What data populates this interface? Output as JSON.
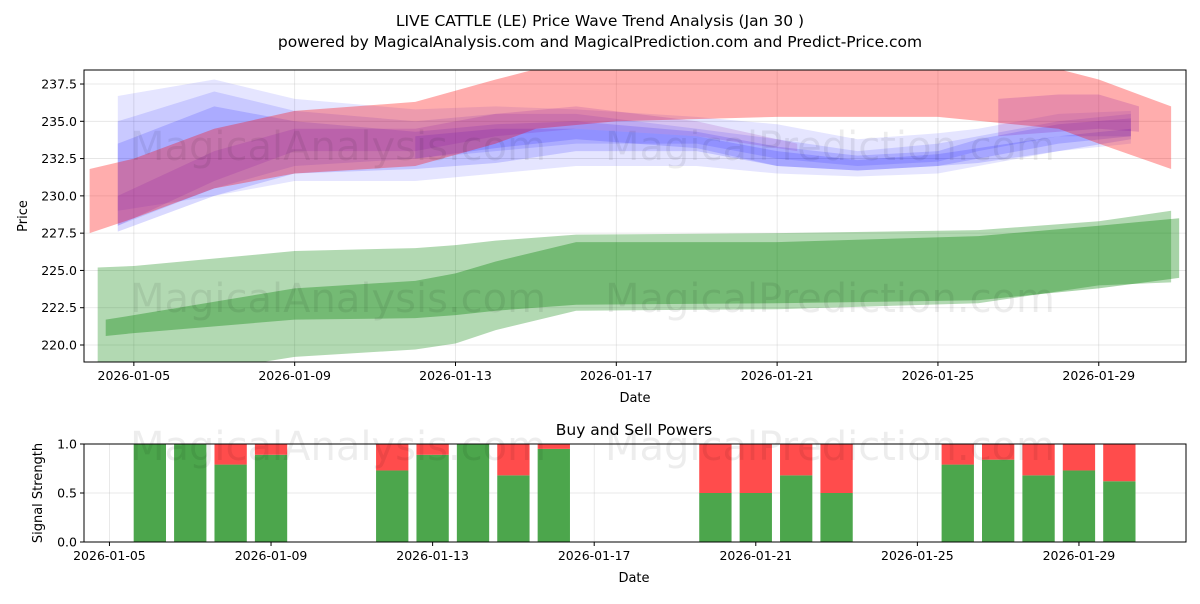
{
  "title": "LIVE CATTLE (LE) Price Wave Trend Analysis (Jan 30 )",
  "subtitle": "powered by MagicalAnalysis.com and MagicalPrediction.com and Predict-Price.com",
  "watermarks": [
    "MagicalAnalysis.com",
    "MagicalPrediction.com"
  ],
  "chart_data": [
    {
      "type": "area",
      "title": "",
      "xlabel": "Date",
      "ylabel": "Price",
      "x_unit": "day of January 2026",
      "xlim": [
        3.76,
        31.17
      ],
      "ylim": [
        218.86,
        238.44
      ],
      "xticks": [
        5,
        9,
        13,
        17,
        21,
        25,
        29
      ],
      "xtick_labels": [
        "2026-01-05",
        "2026-01-09",
        "2026-01-13",
        "2026-01-17",
        "2026-01-21",
        "2026-01-25",
        "2026-01-29"
      ],
      "yticks": [
        220.0,
        222.5,
        225.0,
        227.5,
        230.0,
        232.5,
        235.0,
        237.5
      ],
      "ytick_labels": [
        "220.0",
        "222.5",
        "225.0",
        "227.5",
        "230.0",
        "232.5",
        "235.0",
        "237.5"
      ],
      "grid": true,
      "bands": [
        {
          "name": "green-outer",
          "color": "#008000",
          "opacity": 0.3,
          "x": [
            4.1,
            5,
            9,
            12,
            13,
            14,
            16,
            21,
            26,
            29,
            30.8
          ],
          "upper": [
            225.2,
            225.3,
            226.3,
            226.5,
            226.7,
            227.0,
            227.4,
            227.5,
            227.7,
            228.3,
            229.0
          ],
          "lower": [
            218.5,
            217.5,
            219.2,
            219.7,
            220.1,
            221.0,
            222.3,
            222.4,
            222.8,
            224.0,
            224.2
          ]
        },
        {
          "name": "green-inner",
          "color": "#008000",
          "opacity": 0.35,
          "x": [
            4.3,
            5,
            9,
            12,
            13,
            14,
            16,
            21,
            26,
            29,
            31
          ],
          "upper": [
            221.7,
            222.0,
            223.8,
            224.3,
            224.8,
            225.6,
            226.9,
            226.9,
            227.3,
            228.0,
            228.5
          ],
          "lower": [
            220.6,
            220.8,
            221.7,
            221.8,
            222.0,
            222.3,
            222.7,
            222.8,
            223.0,
            223.8,
            224.5
          ]
        },
        {
          "name": "blue-1",
          "color": "#0000ff",
          "opacity": 0.1,
          "x": [
            4.6,
            7,
            9,
            12,
            14,
            16,
            19,
            21,
            23,
            25,
            26,
            28,
            29.8
          ],
          "upper": [
            236.7,
            237.8,
            236.5,
            235.8,
            236.0,
            235.8,
            235.3,
            234.8,
            233.8,
            234.2,
            234.5,
            235.5,
            235.7
          ],
          "lower": [
            229.0,
            230.0,
            231.0,
            231.0,
            231.5,
            232.0,
            232.0,
            231.5,
            231.3,
            231.5,
            232.0,
            233.0,
            233.5
          ]
        },
        {
          "name": "blue-2",
          "color": "#0000ff",
          "opacity": 0.12,
          "x": [
            4.6,
            7,
            9,
            12,
            14,
            16,
            19,
            21,
            23,
            25,
            26,
            28,
            29.8
          ],
          "upper": [
            235.0,
            237.0,
            235.7,
            235.0,
            235.5,
            235.5,
            234.5,
            233.8,
            233.0,
            233.5,
            234.0,
            235.0,
            235.5
          ],
          "lower": [
            228.0,
            230.5,
            232.0,
            232.5,
            233.0,
            233.5,
            233.5,
            232.5,
            232.0,
            232.3,
            233.0,
            234.0,
            234.0
          ]
        },
        {
          "name": "blue-3",
          "color": "#0000ff",
          "opacity": 0.15,
          "x": [
            4.6,
            7,
            9,
            12,
            14,
            16,
            19,
            21,
            23,
            25,
            26,
            28,
            29.8
          ],
          "upper": [
            233.5,
            236.0,
            235.0,
            234.3,
            234.8,
            235.0,
            234.3,
            233.3,
            232.7,
            233.0,
            233.8,
            234.8,
            235.2
          ],
          "lower": [
            227.6,
            230.0,
            231.5,
            231.8,
            232.2,
            233.0,
            233.0,
            232.0,
            231.7,
            232.0,
            232.5,
            233.5,
            234.0
          ]
        },
        {
          "name": "blue-4",
          "color": "#0000ff",
          "opacity": 0.15,
          "x": [
            12,
            14,
            16,
            19,
            21,
            23,
            25,
            26,
            28,
            29.8
          ],
          "upper": [
            234.0,
            234.5,
            234.5,
            234.0,
            233.0,
            232.4,
            232.8,
            233.2,
            234.0,
            234.5
          ],
          "lower": [
            232.5,
            233.2,
            233.8,
            233.2,
            232.0,
            231.7,
            232.0,
            232.2,
            233.0,
            233.8
          ]
        },
        {
          "name": "red-main",
          "color": "#ff0000",
          "opacity": 0.32,
          "x": [
            3.9,
            5,
            7,
            9,
            12,
            14,
            15,
            17,
            21,
            25,
            28,
            29,
            30.8
          ],
          "upper": [
            231.8,
            232.5,
            234.5,
            235.7,
            236.3,
            237.8,
            238.5,
            238.5,
            238.5,
            238.5,
            238.5,
            237.8,
            236.0
          ],
          "lower": [
            227.5,
            228.5,
            230.5,
            231.5,
            232.0,
            233.5,
            234.5,
            235.0,
            235.3,
            235.3,
            234.5,
            233.5,
            231.8
          ]
        },
        {
          "name": "purple-1",
          "color": "#8000a0",
          "opacity": 0.15,
          "x": [
            4.6,
            7,
            9,
            12,
            14,
            16,
            19,
            21.5
          ],
          "upper": [
            230.0,
            233.0,
            234.5,
            234.5,
            235.5,
            236.0,
            235.0,
            233.5
          ],
          "lower": [
            228.0,
            231.0,
            233.0,
            233.0,
            234.0,
            234.5,
            234.0,
            233.0
          ]
        },
        {
          "name": "purple-2",
          "color": "#8000a0",
          "opacity": 0.18,
          "x": [
            26.5,
            28,
            29,
            30
          ],
          "upper": [
            236.5,
            236.8,
            236.8,
            236.0
          ],
          "lower": [
            234.0,
            234.3,
            234.5,
            234.3
          ]
        }
      ]
    },
    {
      "type": "bar",
      "title": "Buy and Sell Powers",
      "xlabel": "Date",
      "ylabel": "Signal Strength",
      "x_unit": "day of January 2026",
      "xlim": [
        4.37,
        31.65
      ],
      "ylim": [
        0,
        1
      ],
      "xticks": [
        5,
        9,
        13,
        17,
        21,
        25,
        29
      ],
      "xtick_labels": [
        "2026-01-05",
        "2026-01-09",
        "2026-01-13",
        "2026-01-17",
        "2026-01-21",
        "2026-01-25",
        "2026-01-29"
      ],
      "yticks": [
        0,
        0.5,
        1
      ],
      "ytick_labels": [
        "0.0",
        "0.5",
        "1.0"
      ],
      "buy_color": "#4ca64c",
      "sell_color": "#ff4c4c",
      "days": [
        6,
        7,
        8,
        9,
        12,
        13,
        14,
        15,
        16,
        20,
        21,
        22,
        23,
        26,
        27,
        28,
        29,
        30
      ],
      "buy": [
        1.0,
        1.0,
        0.79,
        0.89,
        0.73,
        0.89,
        1.0,
        0.68,
        0.95,
        0.5,
        0.5,
        0.68,
        0.5,
        0.79,
        0.84,
        0.68,
        0.73,
        0.62
      ]
    }
  ]
}
